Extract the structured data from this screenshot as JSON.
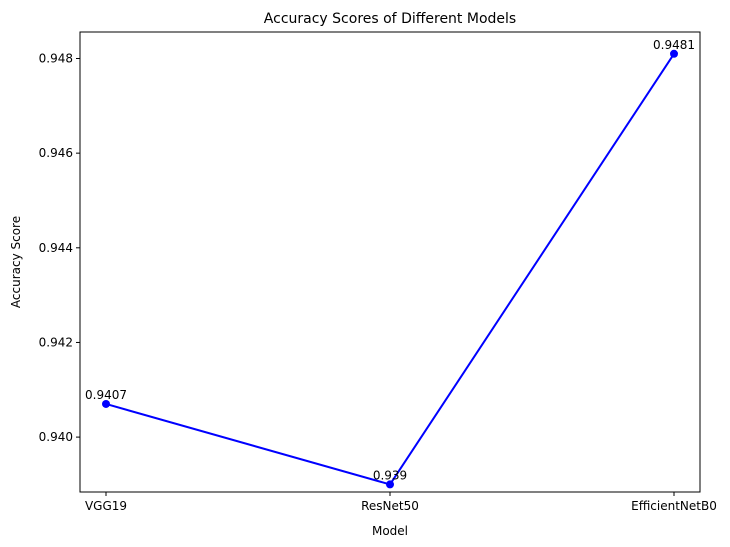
{
  "chart_data": {
    "type": "line",
    "title": "Accuracy Scores of Different Models",
    "xlabel": "Model",
    "ylabel": "Accuracy Score",
    "categories": [
      "VGG19",
      "ResNet50",
      "EfficientNetB0"
    ],
    "series": [
      {
        "values": [
          0.9407,
          0.939,
          0.9481
        ],
        "color": "#0000ff",
        "marker": "circle"
      }
    ],
    "data_labels": [
      "0.9407",
      "0.939",
      "0.9481"
    ],
    "ylim": [
      0.93884,
      0.94856
    ],
    "yticks": [
      0.94,
      0.942,
      0.944,
      0.946,
      0.948
    ],
    "ytick_labels": [
      "0.940",
      "0.942",
      "0.944",
      "0.946",
      "0.948"
    ],
    "grid": false,
    "legend": "none"
  }
}
